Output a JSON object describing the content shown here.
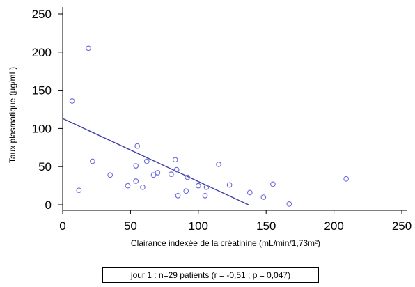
{
  "chart_data": {
    "type": "scatter",
    "title": "",
    "xlabel": "Clairance indexée de la créatinine (mL/min/1,73m²)",
    "ylabel": "Taux plasmatique (µg/mL)",
    "xlim": [
      0,
      250
    ],
    "ylim": [
      0,
      250
    ],
    "x_ticks": [
      "0",
      "50",
      "100",
      "150",
      "200",
      "250"
    ],
    "y_ticks": [
      "0",
      "50",
      "100",
      "150",
      "200",
      "250"
    ],
    "grid": false,
    "marker": "open-circle",
    "colors": {
      "points": "#6a6ad8",
      "regression": "#3f3fa8"
    },
    "points": [
      {
        "x": 7,
        "y": 136
      },
      {
        "x": 12,
        "y": 19
      },
      {
        "x": 19,
        "y": 205
      },
      {
        "x": 22,
        "y": 57
      },
      {
        "x": 35,
        "y": 39
      },
      {
        "x": 48,
        "y": 25
      },
      {
        "x": 54,
        "y": 31
      },
      {
        "x": 54,
        "y": 51
      },
      {
        "x": 55,
        "y": 77
      },
      {
        "x": 59,
        "y": 23
      },
      {
        "x": 62,
        "y": 57
      },
      {
        "x": 67,
        "y": 39
      },
      {
        "x": 70,
        "y": 42
      },
      {
        "x": 80,
        "y": 40
      },
      {
        "x": 83,
        "y": 59
      },
      {
        "x": 84,
        "y": 46
      },
      {
        "x": 85,
        "y": 12
      },
      {
        "x": 91,
        "y": 18
      },
      {
        "x": 92,
        "y": 36
      },
      {
        "x": 100,
        "y": 25
      },
      {
        "x": 105,
        "y": 12
      },
      {
        "x": 106,
        "y": 23
      },
      {
        "x": 115,
        "y": 53
      },
      {
        "x": 123,
        "y": 26
      },
      {
        "x": 138,
        "y": 16
      },
      {
        "x": 148,
        "y": 10
      },
      {
        "x": 155,
        "y": 27
      },
      {
        "x": 167,
        "y": 1
      },
      {
        "x": 209,
        "y": 34
      }
    ],
    "regression": {
      "x": [
        0,
        137
      ],
      "y": [
        113,
        0
      ]
    }
  },
  "caption": "jour 1 : n=29 patients (r = -0,51 ; p = 0,047)"
}
